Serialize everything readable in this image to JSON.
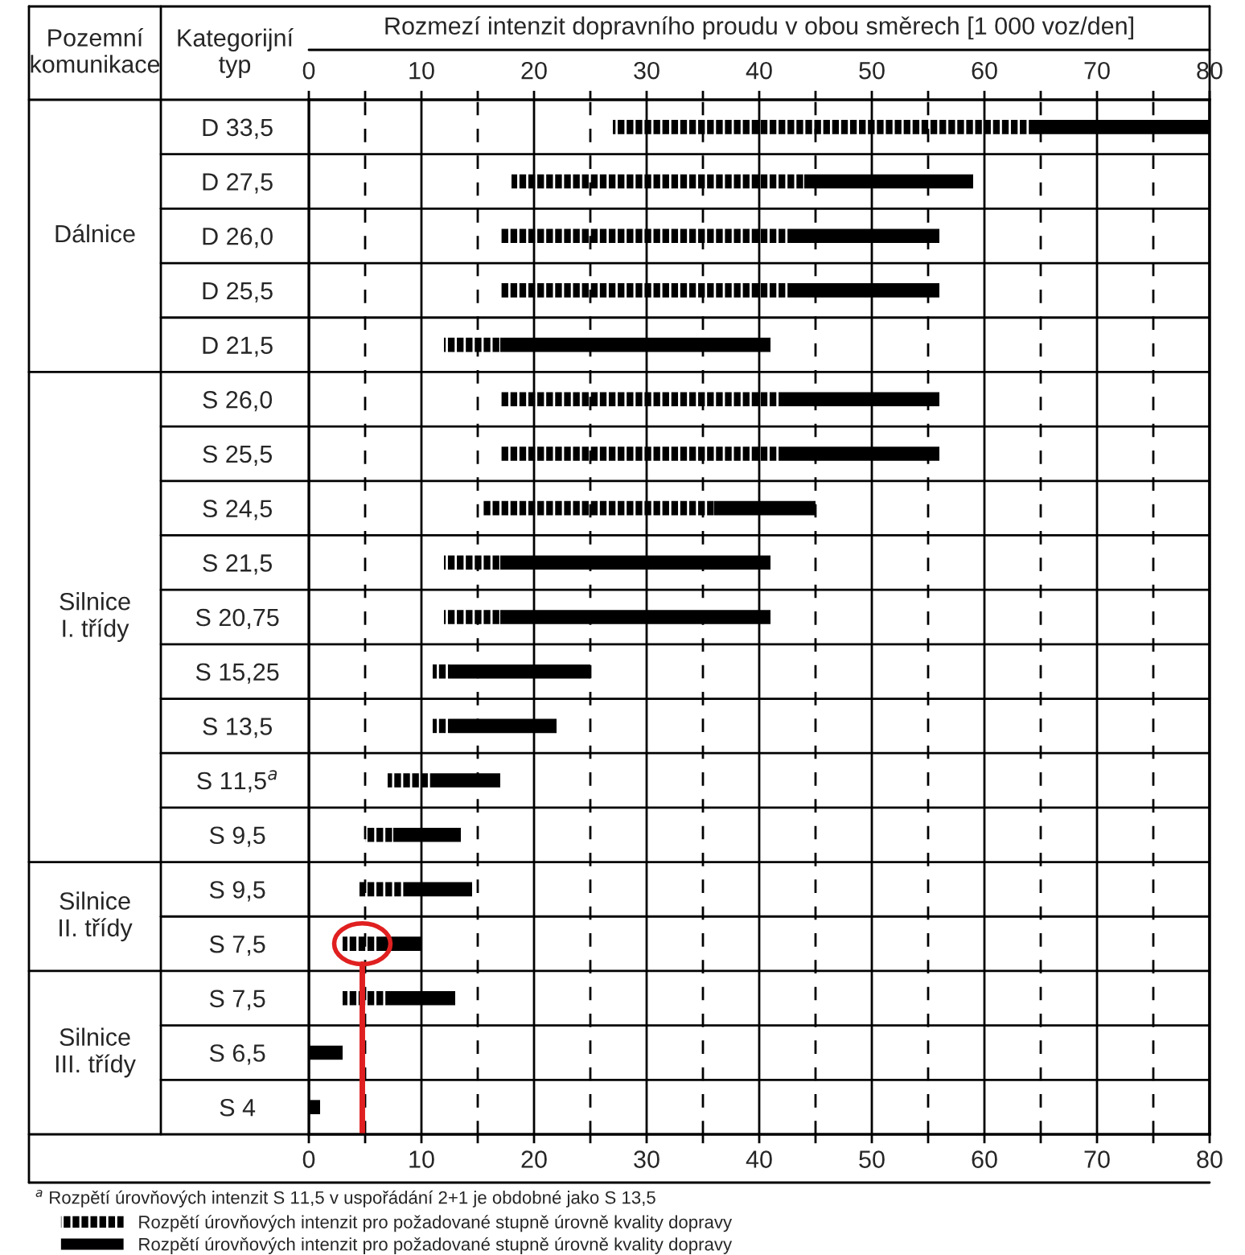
{
  "chart_data": {
    "type": "bar",
    "orientation": "horizontal",
    "xlabel": "Rozmezí intenzit dopravního proudu v obou směrech [1 000 voz/den]",
    "categories": [
      "D 33,5",
      "D 27,5",
      "D 26,0",
      "D 25,5",
      "D 21,5",
      "S 26,0",
      "S 25,5",
      "S 24,5",
      "S 21,5",
      "S 20,75",
      "S 15,25",
      "S 13,5",
      "S 11,5$^{a}$",
      "S 9,5",
      "S 9,5",
      "S 7,5",
      "S 7,5",
      "S 6,5",
      "S 4"
    ],
    "series": [
      {
        "name": "Rozpětí úrovňových intenzit pro požadované stupně úrovně kvality dopravy",
        "color": "#000000",
        "line_style": "dashed",
        "base": [
          27,
          18,
          17,
          17,
          12,
          17,
          17,
          15.5,
          12,
          12,
          11,
          11,
          7,
          5,
          4.5,
          3,
          3,
          null,
          null
        ],
        "values": [
          37,
          26,
          26,
          26,
          5,
          25,
          25,
          20.5,
          5,
          5,
          1.5,
          1.5,
          4,
          2.5,
          4,
          3.5,
          4,
          null,
          null
        ]
      },
      {
        "name": "Rozpětí úrovňových intenzit pro požadované stupně úrovně kvality dopravy",
        "color": "#000000",
        "line_style": "solid",
        "base": [
          64,
          44,
          43,
          43,
          17,
          42,
          42,
          36,
          17,
          17,
          12.5,
          12.5,
          11,
          7.5,
          8.5,
          6.5,
          7,
          0,
          0
        ],
        "values": [
          16,
          15,
          13,
          13,
          24,
          14,
          14,
          9,
          24,
          24,
          12.5,
          9.5,
          6,
          6,
          6,
          3.5,
          6,
          3,
          1
        ]
      }
    ],
    "xlim": [
      0,
      80
    ],
    "x2lim": [
      0,
      80
    ],
    "xticks": [
      0,
      {
        "value": 5,
        "label": null
      },
      10,
      {
        "value": 15,
        "label": null
      },
      20,
      {
        "value": 25,
        "label": null
      },
      30,
      {
        "value": 35,
        "label": null
      },
      40,
      {
        "value": 45,
        "label": null
      },
      50,
      {
        "value": 55,
        "label": null
      },
      60,
      {
        "value": 65,
        "label": null
      },
      70,
      {
        "value": 75,
        "label": null
      },
      80
    ],
    "x2ticks": [
      0,
      {
        "value": 5,
        "label": null
      },
      10,
      {
        "value": 15,
        "label": null
      },
      20,
      {
        "value": 25,
        "label": null
      },
      30,
      {
        "value": 35,
        "label": null
      },
      40,
      {
        "value": 45,
        "label": null
      },
      50,
      {
        "value": 55,
        "label": null
      },
      60,
      {
        "value": 65,
        "label": null
      },
      70,
      {
        "value": 75,
        "label": null
      },
      80
    ],
    "grid": true,
    "legend": "bottom",
    "annotations": [
      "Pozemní\nkomunikace",
      "Kategorijní\ntyp",
      "Dálnice",
      "Silnice\nI. třídy",
      "Silnice\nII. třídy",
      "Silnice\nIII. třídy",
      "$^{a}$ Rozpětí úrovňových intenzit S 11,5 v uspořádání 2+1 je obdobné jako S 13,5"
    ]
  }
}
